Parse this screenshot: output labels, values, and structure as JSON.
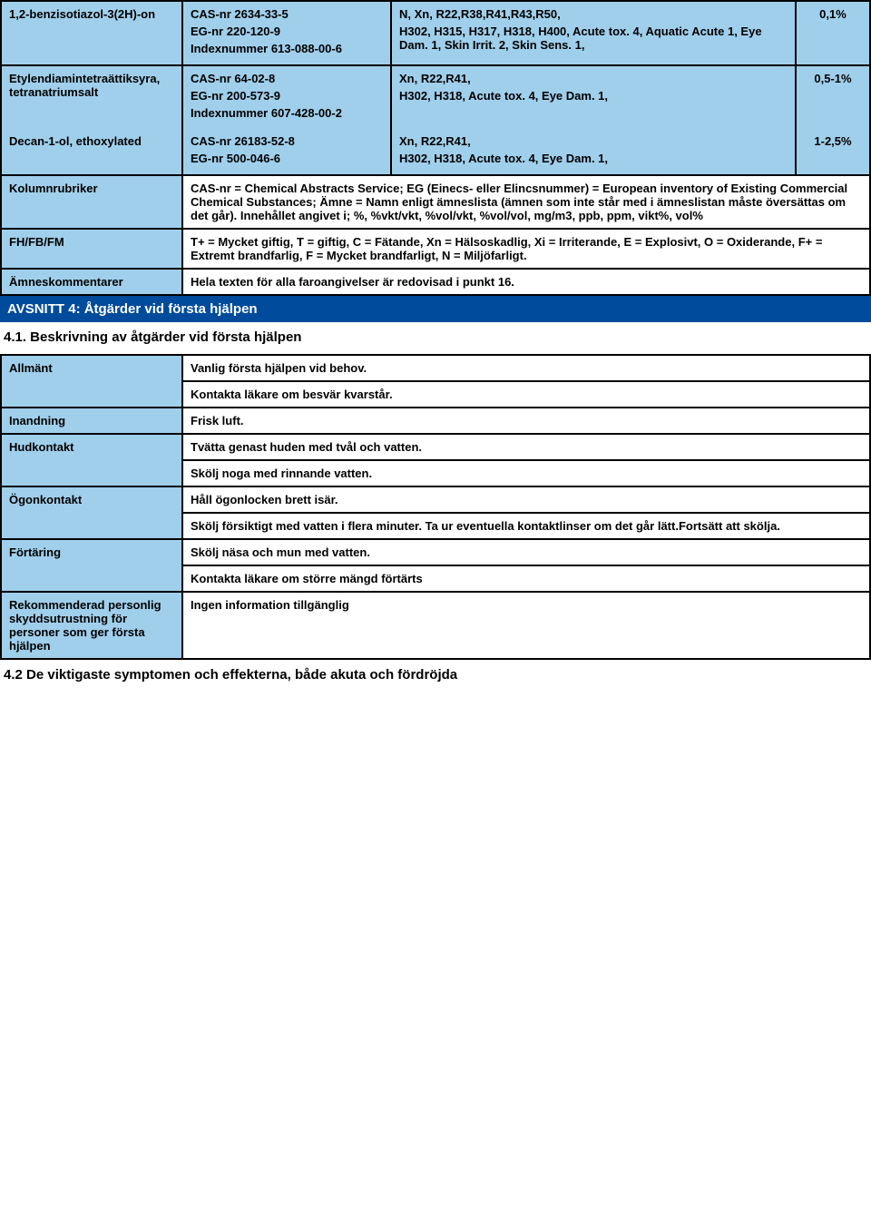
{
  "chemicals": [
    {
      "name": "1,2-benzisotiazol-3(2H)-on",
      "cas_label": "CAS-nr",
      "cas": "2634-33-5",
      "eg_label": "EG-nr",
      "eg": "220-120-9",
      "idx_label": "Indexnummer",
      "idx": "613-088-00-6",
      "hazard1": "N, Xn, R22,R38,R41,R43,R50,",
      "hazard2": "H302, H315, H317, H318, H400, Acute tox. 4, Aquatic Acute 1, Eye Dam. 1, Skin Irrit. 2, Skin Sens. 1,",
      "pct": "0,1%"
    },
    {
      "name": "Etylendiamintetraättiksyra, tetranatriumsalt",
      "cas_label": "CAS-nr",
      "cas": "64-02-8",
      "eg_label": "EG-nr",
      "eg": "200-573-9",
      "idx_label": "Indexnummer",
      "idx": "607-428-00-2",
      "hazard1": "Xn, R22,R41,",
      "hazard2": "H302, H318, Acute tox. 4, Eye Dam. 1,",
      "pct": "0,5-1%"
    },
    {
      "name": "Decan-1-ol, ethoxylated",
      "cas_label": "CAS-nr",
      "cas": "26183-52-8",
      "eg_label": "EG-nr",
      "eg": "500-046-6",
      "idx_label": "",
      "idx": "",
      "hazard1": "Xn, R22,R41,",
      "hazard2": "H302, H318, Acute tox. 4, Eye Dam. 1,",
      "pct": "1-2,5%"
    }
  ],
  "rows": {
    "kolumn_label": "Kolumnrubriker",
    "kolumn_text": "CAS-nr = Chemical Abstracts Service; EG (Einecs- eller Elincsnummer) = European inventory of Existing Commercial Chemical Substances; Ämne = Namn enligt ämneslista (ämnen som inte står med i ämneslistan måste översättas om det går). Innehållet angivet i; %, %vkt/vkt, %vol/vkt, %vol/vol, mg/m3, ppb, ppm, vikt%, vol%",
    "fh_label": "FH/FB/FM",
    "fh_text": "T+ = Mycket giftig, T = giftig, C = Fätande, Xn = Hälsoskadlig, Xi = Irriterande, E = Explosivt, O = Oxiderande, F+ = Extremt brandfarlig, F = Mycket brandfarligt, N = Miljöfarligt.",
    "amne_label": "Ämneskommentarer",
    "amne_text": "Hela texten för alla faroangivelser är redovisad i punkt 16."
  },
  "section4": {
    "header": "AVSNITT 4: Åtgärder vid första hjälpen",
    "sub41": "4.1. Beskrivning av åtgärder vid första hjälpen",
    "allmant_label": "Allmänt",
    "allmant_1": "Vanlig första hjälpen vid behov.",
    "allmant_2": "Kontakta läkare om besvär kvarstår.",
    "inandning_label": "Inandning",
    "inandning_1": "Frisk luft.",
    "hud_label": "Hudkontakt",
    "hud_1": "Tvätta genast huden med tvål och vatten.",
    "hud_2": "Skölj noga med rinnande vatten.",
    "ogon_label": "Ögonkontakt",
    "ogon_1": "Håll ögonlocken brett isär.",
    "ogon_2": "Skölj försiktigt med vatten i flera minuter. Ta ur eventuella kontaktlinser om det går lätt.Fortsätt att skölja.",
    "fort_label": "Förtäring",
    "fort_1": "Skölj näsa och mun med vatten.",
    "fort_2": "Kontakta läkare om större mängd förtärts",
    "rek_label": "Rekommenderad personlig skyddsutrustning för personer som ger första hjälpen",
    "rek_1": "Ingen information tillgänglig",
    "sub42": "4.2 De viktigaste symptomen och effekterna, både akuta och fördröjda"
  }
}
